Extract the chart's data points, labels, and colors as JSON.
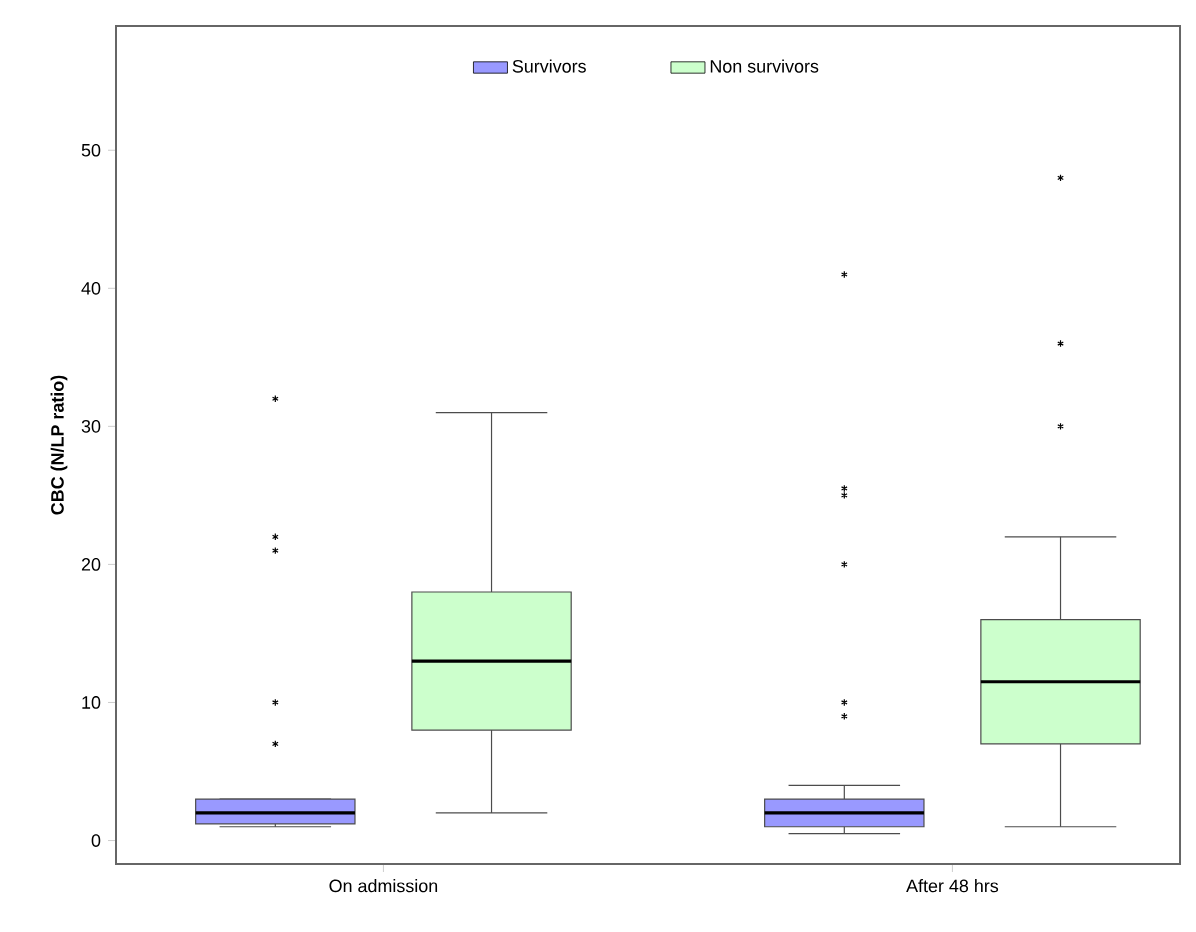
{
  "chart_data": {
    "type": "box",
    "ylabel": "CBC (N/LP ratio)",
    "categories": [
      "On admission",
      "After 48 hrs"
    ],
    "series": [
      {
        "name": "Survivors",
        "color": "#9999ff",
        "boxes": [
          {
            "low": 1,
            "q1": 1.2,
            "median": 2,
            "q3": 3,
            "high": 3,
            "outliers": [
              7,
              10,
              21,
              22,
              32
            ]
          },
          {
            "low": 0.5,
            "q1": 1,
            "median": 2,
            "q3": 3,
            "high": 4,
            "outliers": [
              9,
              10,
              20,
              25,
              25.5,
              41
            ]
          }
        ]
      },
      {
        "name": "Non survivors",
        "color": "#ccffcc",
        "boxes": [
          {
            "low": 2,
            "q1": 8,
            "median": 13,
            "q3": 18,
            "high": 31
          },
          {
            "low": 1,
            "q1": 7,
            "median": 11.5,
            "q3": 16,
            "high": 22,
            "outliers": [
              30,
              36,
              48
            ]
          }
        ]
      }
    ],
    "ylim": [
      -1.7,
      59
    ],
    "yticks": [
      0,
      10,
      20,
      30,
      40,
      50
    ],
    "legend": "top",
    "marker": "star",
    "grid": false
  }
}
